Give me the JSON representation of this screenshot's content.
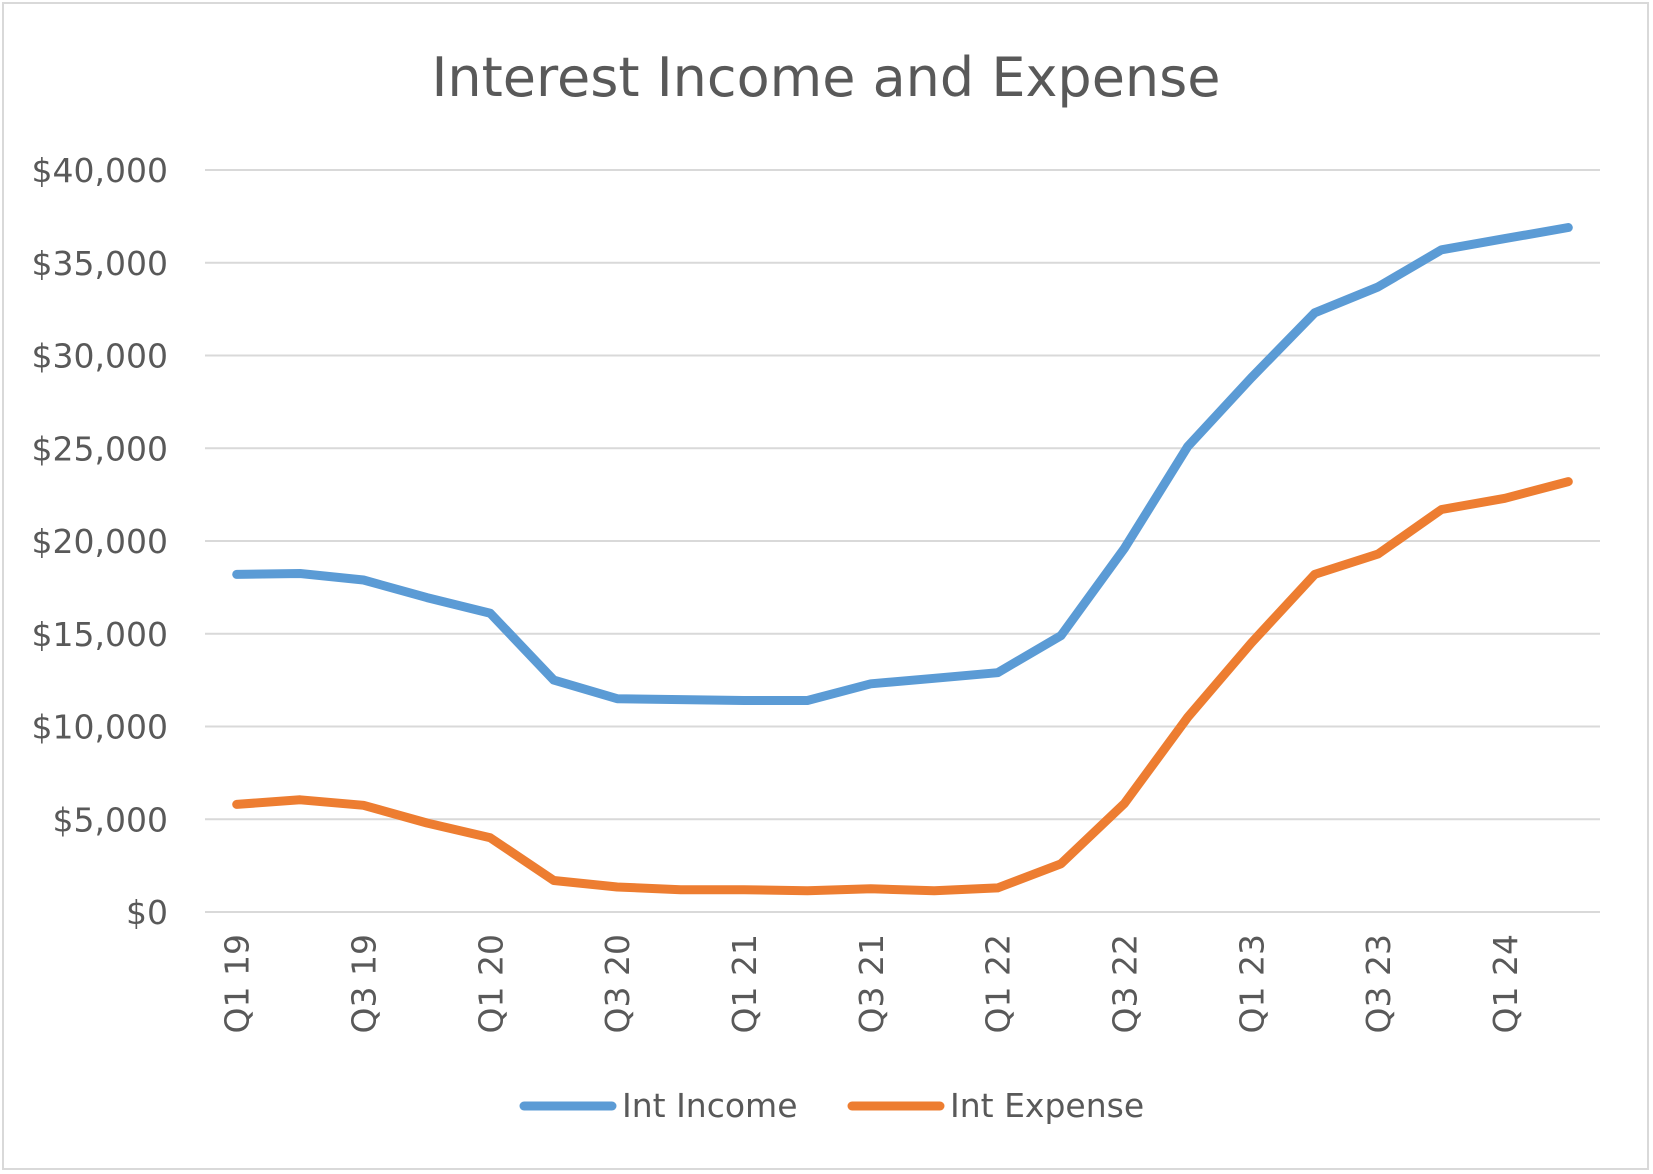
{
  "chart_data": {
    "type": "line",
    "title": "Interest Income and Expense",
    "xlabel": "",
    "ylabel": "",
    "ylim": [
      0,
      40000
    ],
    "y_ticks": [
      "$0",
      "$5,000",
      "$10,000",
      "$15,000",
      "$20,000",
      "$25,000",
      "$30,000",
      "$35,000",
      "$40,000"
    ],
    "categories": [
      "Q1 19",
      "Q2 19",
      "Q3 19",
      "Q4 19",
      "Q1 20",
      "Q2 20",
      "Q3 20",
      "Q4 20",
      "Q1 21",
      "Q2 21",
      "Q3 21",
      "Q4 21",
      "Q1 22",
      "Q2 22",
      "Q3 22",
      "Q4 22",
      "Q1 23",
      "Q2 23",
      "Q3 23",
      "Q4 23",
      "Q1 24",
      "Q2 24"
    ],
    "x_tick_labels": [
      "Q1 19",
      "Q3 19",
      "Q1 20",
      "Q3 20",
      "Q1 21",
      "Q3 21",
      "Q1 22",
      "Q3 22",
      "Q1 23",
      "Q3 23",
      "Q1 24"
    ],
    "grid": true,
    "legend_position": "bottom",
    "series": [
      {
        "name": "Int Income",
        "color": "#5b9bd5",
        "values": [
          18200,
          18250,
          17900,
          16950,
          16100,
          12500,
          11500,
          11450,
          11400,
          11400,
          12300,
          12600,
          12900,
          14900,
          19600,
          25100,
          28800,
          32300,
          33700,
          35700,
          36300,
          36900
        ]
      },
      {
        "name": "Int Expense",
        "color": "#ed7d31",
        "values": [
          5800,
          6050,
          5750,
          4800,
          4000,
          1700,
          1350,
          1200,
          1200,
          1150,
          1250,
          1150,
          1300,
          2600,
          5850,
          10500,
          14500,
          18200,
          19300,
          21700,
          22300,
          23200
        ]
      }
    ]
  }
}
